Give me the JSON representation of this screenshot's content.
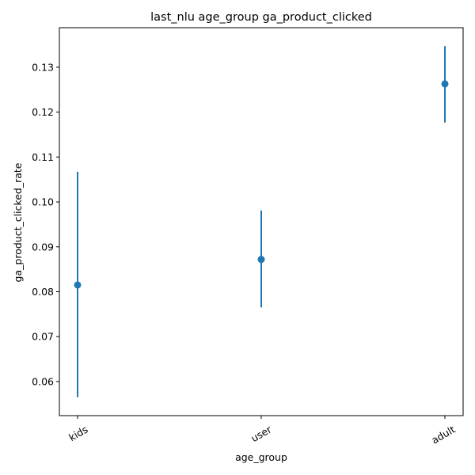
{
  "chart_data": {
    "type": "errorbar",
    "title": "last_nlu age_group ga_product_clicked",
    "xlabel": "age_group",
    "ylabel": "ga_product_clicked_rate",
    "categories": [
      "kids",
      "user",
      "adult"
    ],
    "series": [
      {
        "values": [
          0.0815,
          0.0872,
          0.1263
        ],
        "lower": [
          0.0565,
          0.0765,
          0.1177
        ],
        "upper": [
          0.1067,
          0.0981,
          0.1347
        ]
      }
    ],
    "ylim": [
      0.0524,
      0.1388
    ],
    "yticks": [
      "0.06",
      "0.07",
      "0.08",
      "0.09",
      "0.10",
      "0.11",
      "0.12",
      "0.13"
    ],
    "x_tick_rotation_deg": -30,
    "grid": false,
    "legend": "none",
    "colors": {
      "series": "#1f77b4",
      "axes": "#000000"
    }
  }
}
